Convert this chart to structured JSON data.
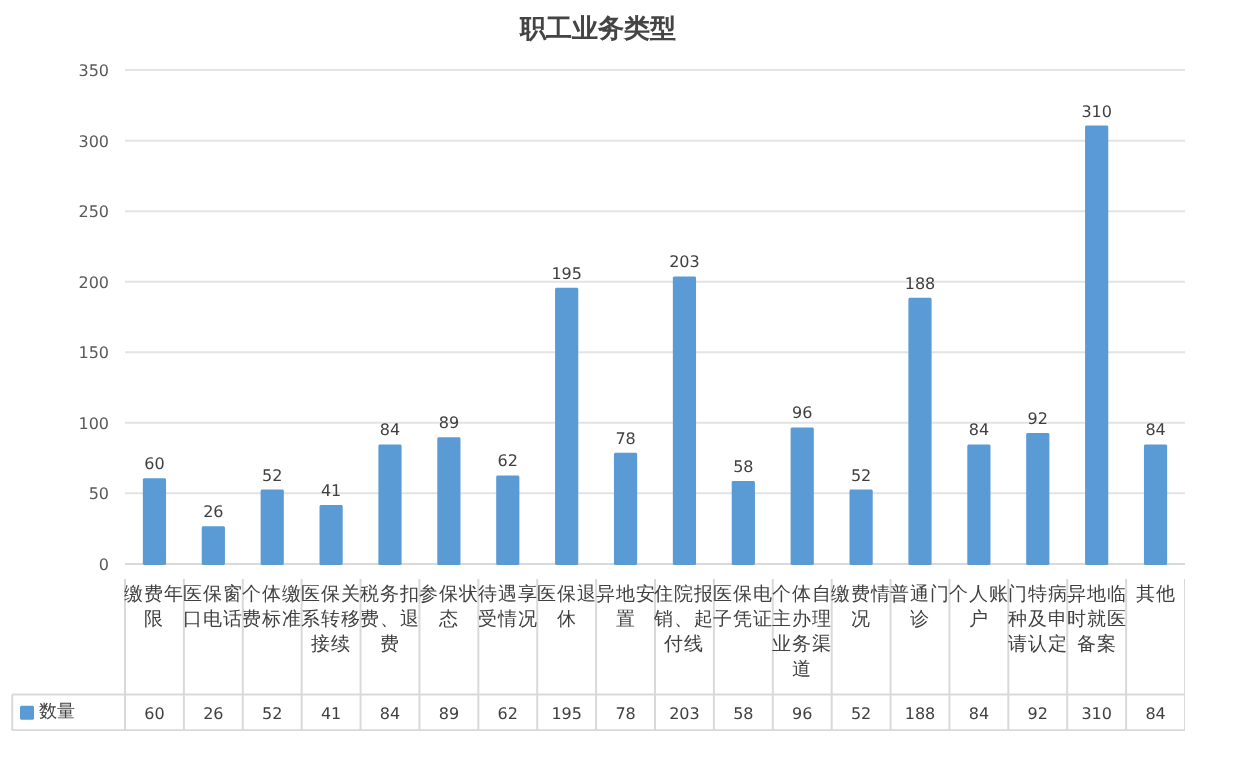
{
  "chart_data": {
    "type": "bar",
    "title": "职工业务类型",
    "categories": [
      "缴费年限",
      "医保窗口电话",
      "个体缴费标准",
      "医保关系转移接续",
      "税务扣费、退费",
      "参保状态",
      "待遇享受情况",
      "医保退休",
      "异地安置",
      "住院报销、起付线",
      "医保电子凭证",
      "个体自主办理业务渠道",
      "缴费情况",
      "普通门诊",
      "个人账户",
      "门特病种及申请认定",
      "异地临时就医备案",
      "其他"
    ],
    "series": [
      {
        "name": "数量",
        "color": "#5b9bd5",
        "values": [
          60,
          26,
          52,
          41,
          84,
          89,
          62,
          195,
          78,
          203,
          58,
          96,
          52,
          188,
          84,
          92,
          310,
          84
        ],
        "value_labels": [
          "60",
          "26",
          "52",
          "41",
          "84",
          "89",
          "62",
          "195",
          "78",
          "203",
          "58",
          "96",
          "52",
          "188",
          "84",
          "92",
          "310",
          "84"
        ]
      }
    ],
    "ylim": [
      0,
      350
    ],
    "yticks": [
      0,
      50,
      100,
      150,
      200,
      250,
      300,
      350
    ],
    "grid": "y",
    "legend": "bottom",
    "data_labels": true
  }
}
